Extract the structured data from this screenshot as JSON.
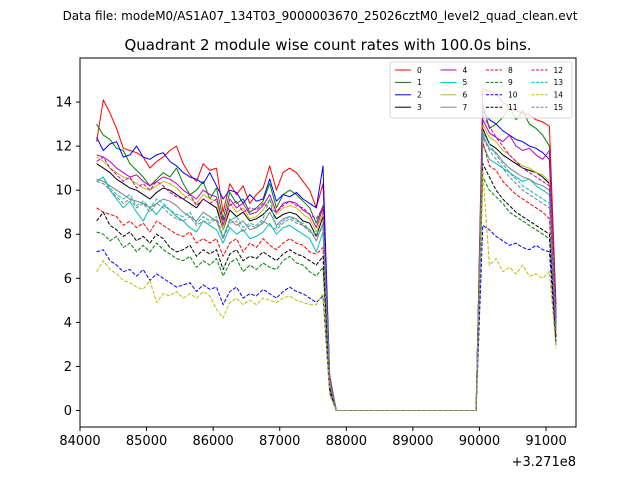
{
  "figure": {
    "suptitle": "Data file: modeM0/AS1A07_134T03_9000003670_25026cztM0_level2_quad_clean.evt"
  },
  "chart_data": {
    "type": "line",
    "title": "Quadrant 2 module wise count rates with 100.0s bins.",
    "xlabel": "",
    "ylabel": "",
    "x_offset_label": "+3.271e8",
    "xlim": [
      84000,
      91450
    ],
    "ylim": [
      -0.75,
      16.0
    ],
    "xticks": [
      84000,
      85000,
      86000,
      87000,
      88000,
      89000,
      90000,
      91000
    ],
    "xtick_labels": [
      "84000",
      "85000",
      "86000",
      "87000",
      "88000",
      "89000",
      "90000",
      "91000"
    ],
    "yticks": [
      0,
      2,
      4,
      6,
      8,
      10,
      12,
      14
    ],
    "ytick_labels": [
      "0",
      "2",
      "4",
      "6",
      "8",
      "10",
      "12",
      "14"
    ],
    "legend": {
      "placement": "upper-right",
      "columns": 4,
      "entries": [
        "0",
        "1",
        "2",
        "3",
        "4",
        "5",
        "6",
        "7",
        "8",
        "9",
        "10",
        "11",
        "12",
        "13",
        "14",
        "15"
      ]
    },
    "segment1_x": [
      84250,
      84350,
      84450,
      84550,
      84650,
      84750,
      84850,
      84950,
      85050,
      85150,
      85250,
      85350,
      85450,
      85550,
      85650,
      85750,
      85850,
      85950,
      86050,
      86150,
      86250,
      86350,
      86450,
      86550,
      86650,
      86750,
      86850,
      86950,
      87050,
      87150,
      87250,
      87350,
      87450,
      87550,
      87650,
      87750
    ],
    "gap_x": [
      87850,
      87950,
      88050,
      88150,
      88250,
      88350,
      88450,
      88550,
      88650,
      88750,
      88850,
      88950,
      89050,
      89150,
      89250,
      89350,
      89450,
      89550,
      89650,
      89750,
      89850,
      89950
    ],
    "segment2_x": [
      90050,
      90150,
      90250,
      90350,
      90450,
      90550,
      90650,
      90750,
      90850,
      90950,
      91050,
      91150
    ],
    "series": [
      {
        "name": "0",
        "color": "#ff0000",
        "dash": "solid",
        "seg1": [
          12.2,
          14.1,
          13.5,
          12.8,
          11.9,
          11.8,
          11.7,
          11.5,
          11.0,
          11.3,
          11.5,
          11.8,
          12.0,
          11.2,
          10.7,
          10.4,
          11.2,
          10.9,
          11.0,
          9.0,
          10.3,
          9.8,
          10.2,
          9.4,
          9.8,
          10.1,
          11.1,
          10.0,
          10.8,
          11.0,
          10.8,
          10.4,
          10.0,
          9.2,
          10.3,
          1.6
        ],
        "seg2": [
          14.6,
          14.5,
          14.4,
          14.0,
          13.8,
          13.6,
          13.5,
          13.4,
          13.2,
          13.1,
          12.9,
          4.8
        ]
      },
      {
        "name": "1",
        "color": "#008000",
        "dash": "solid",
        "seg1": [
          13.0,
          12.5,
          12.3,
          11.9,
          11.8,
          11.2,
          10.9,
          10.6,
          10.2,
          10.5,
          10.8,
          10.6,
          11.0,
          10.3,
          9.8,
          10.0,
          10.4,
          9.6,
          10.1,
          8.7,
          9.9,
          9.4,
          9.6,
          9.0,
          9.2,
          9.5,
          10.3,
          9.2,
          9.8,
          10.0,
          9.8,
          9.5,
          9.2,
          8.5,
          9.3,
          1.4
        ],
        "seg2": [
          13.9,
          12.8,
          13.0,
          13.3,
          13.8,
          13.2,
          13.6,
          13.0,
          12.8,
          12.5,
          12.0,
          4.5
        ]
      },
      {
        "name": "2",
        "color": "#0000ff",
        "dash": "solid",
        "seg1": [
          12.4,
          11.8,
          12.1,
          12.2,
          11.5,
          11.6,
          12.0,
          11.5,
          11.4,
          11.6,
          11.7,
          11.3,
          11.1,
          10.8,
          10.6,
          10.5,
          10.3,
          10.8,
          10.2,
          9.6,
          10.0,
          9.9,
          9.4,
          9.8,
          9.5,
          9.6,
          10.5,
          9.5,
          9.8,
          9.7,
          9.9,
          9.6,
          9.4,
          9.2,
          11.1,
          1.5
        ],
        "seg2": [
          13.6,
          13.2,
          13.0,
          12.7,
          12.5,
          12.3,
          12.2,
          12.0,
          11.9,
          11.7,
          11.4,
          4.2
        ]
      },
      {
        "name": "3",
        "color": "#000000",
        "dash": "solid",
        "seg1": [
          11.2,
          11.0,
          10.8,
          10.5,
          10.3,
          10.1,
          10.0,
          9.8,
          9.6,
          9.9,
          10.1,
          10.0,
          9.8,
          9.6,
          9.4,
          9.2,
          9.6,
          9.4,
          9.2,
          8.2,
          9.1,
          8.8,
          9.0,
          8.6,
          8.7,
          8.9,
          9.2,
          8.7,
          8.9,
          9.0,
          8.9,
          8.6,
          8.5,
          7.9,
          8.8,
          1.3
        ],
        "seg2": [
          12.8,
          12.1,
          11.9,
          11.6,
          11.4,
          11.2,
          11.0,
          10.9,
          10.8,
          10.6,
          10.3,
          3.9
        ]
      },
      {
        "name": "4",
        "color": "#bf00bf",
        "dash": "solid",
        "seg1": [
          11.6,
          11.5,
          11.3,
          11.0,
          10.8,
          10.6,
          10.7,
          10.4,
          10.2,
          10.4,
          10.6,
          10.5,
          10.3,
          10.0,
          9.8,
          9.6,
          10.0,
          9.8,
          9.7,
          8.4,
          9.6,
          9.2,
          9.4,
          8.9,
          9.0,
          9.3,
          9.8,
          9.0,
          9.4,
          9.5,
          9.4,
          9.1,
          8.9,
          8.3,
          9.2,
          1.4
        ],
        "seg2": [
          13.2,
          12.6,
          12.4,
          12.2,
          12.5,
          12.0,
          11.8,
          11.9,
          11.6,
          11.4,
          11.8,
          4.1
        ]
      },
      {
        "name": "5",
        "color": "#00bfbf",
        "dash": "solid",
        "seg1": [
          10.4,
          10.6,
          10.0,
          9.6,
          9.2,
          9.5,
          9.0,
          8.6,
          9.2,
          8.9,
          9.3,
          9.1,
          8.8,
          8.6,
          8.3,
          8.1,
          8.6,
          8.4,
          8.2,
          7.6,
          8.3,
          8.0,
          8.2,
          7.8,
          7.9,
          8.1,
          8.5,
          8.0,
          8.3,
          8.4,
          8.2,
          8.0,
          7.8,
          7.2,
          8.1,
          1.2
        ],
        "seg2": [
          12.1,
          11.4,
          11.2,
          11.0,
          10.8,
          10.6,
          10.4,
          10.5,
          10.2,
          10.0,
          9.8,
          3.6
        ]
      },
      {
        "name": "6",
        "color": "#bfbf00",
        "dash": "solid",
        "seg1": [
          11.5,
          11.3,
          11.0,
          10.8,
          10.6,
          10.5,
          10.3,
          10.1,
          10.0,
          10.2,
          10.4,
          10.3,
          10.1,
          9.8,
          9.6,
          9.4,
          9.8,
          9.6,
          9.5,
          8.2,
          9.4,
          9.0,
          9.2,
          8.7,
          8.8,
          9.1,
          9.6,
          8.9,
          9.2,
          9.3,
          9.2,
          8.9,
          8.7,
          8.1,
          9.0,
          1.4
        ],
        "seg2": [
          13.0,
          12.4,
          12.2,
          11.8,
          11.6,
          11.3,
          11.1,
          11.0,
          10.8,
          10.7,
          10.4,
          3.8
        ]
      },
      {
        "name": "7",
        "color": "#808080",
        "dash": "solid",
        "seg1": [
          10.5,
          10.4,
          10.2,
          10.0,
          9.8,
          9.6,
          9.5,
          9.4,
          9.2,
          9.4,
          9.6,
          9.5,
          9.3,
          9.0,
          8.8,
          8.6,
          9.0,
          8.8,
          8.6,
          7.8,
          8.7,
          8.4,
          8.6,
          8.2,
          8.3,
          8.5,
          9.0,
          8.4,
          8.7,
          8.8,
          8.7,
          8.4,
          8.2,
          7.7,
          8.5,
          1.3
        ],
        "seg2": [
          12.5,
          11.9,
          11.7,
          11.3,
          11.0,
          10.8,
          10.6,
          10.5,
          10.3,
          10.2,
          10.0,
          3.7
        ]
      },
      {
        "name": "8",
        "color": "#ff0000",
        "dash": "dashed",
        "seg1": [
          9.2,
          9.0,
          8.9,
          8.8,
          8.4,
          8.6,
          8.3,
          8.5,
          8.1,
          8.6,
          8.4,
          8.2,
          8.0,
          7.9,
          8.1,
          7.6,
          7.8,
          7.6,
          7.8,
          7.0,
          7.6,
          7.8,
          7.2,
          7.6,
          7.4,
          7.8,
          7.5,
          7.3,
          7.6,
          7.8,
          7.6,
          7.5,
          7.2,
          7.1,
          7.4,
          1.1
        ],
        "seg2": [
          12.2,
          11.1,
          10.9,
          10.4,
          10.1,
          9.8,
          9.6,
          9.4,
          9.2,
          9.0,
          8.7,
          3.4
        ]
      },
      {
        "name": "9",
        "color": "#008000",
        "dash": "dashed",
        "seg1": [
          8.1,
          8.0,
          7.7,
          7.9,
          7.4,
          7.6,
          7.2,
          7.5,
          7.2,
          7.6,
          7.3,
          7.1,
          6.9,
          6.8,
          7.0,
          6.5,
          6.8,
          6.6,
          6.9,
          6.1,
          6.7,
          6.9,
          6.3,
          6.6,
          6.4,
          6.7,
          6.5,
          6.4,
          6.8,
          7.0,
          6.7,
          6.6,
          6.3,
          6.1,
          6.5,
          1.0
        ],
        "seg2": [
          10.6,
          10.0,
          9.7,
          9.4,
          9.0,
          8.8,
          8.6,
          8.4,
          8.2,
          8.0,
          7.8,
          3.1
        ]
      },
      {
        "name": "10",
        "color": "#0000ff",
        "dash": "dashed",
        "seg1": [
          7.2,
          7.3,
          6.8,
          6.6,
          6.3,
          6.4,
          6.1,
          6.4,
          5.9,
          6.2,
          6.0,
          5.8,
          5.6,
          5.7,
          5.8,
          5.4,
          5.7,
          5.5,
          5.6,
          4.8,
          5.4,
          5.6,
          5.1,
          5.3,
          5.2,
          5.5,
          5.3,
          5.1,
          5.4,
          5.6,
          5.4,
          5.3,
          5.1,
          4.9,
          5.2,
          0.8
        ],
        "seg2": [
          8.4,
          8.2,
          7.9,
          7.7,
          7.5,
          7.6,
          7.4,
          7.3,
          7.5,
          7.3,
          7.2,
          3.0
        ]
      },
      {
        "name": "11",
        "color": "#000000",
        "dash": "dashed",
        "seg1": [
          8.6,
          9.0,
          8.4,
          8.2,
          7.9,
          8.1,
          7.7,
          7.9,
          7.6,
          8.0,
          7.8,
          7.4,
          7.2,
          7.3,
          7.5,
          7.0,
          7.3,
          7.1,
          7.3,
          6.4,
          7.1,
          7.3,
          6.8,
          7.0,
          6.9,
          7.2,
          7.0,
          6.8,
          7.1,
          7.3,
          7.1,
          7.0,
          6.8,
          6.6,
          7.0,
          1.0
        ],
        "seg2": [
          11.2,
          10.6,
          10.0,
          9.6,
          9.3,
          9.0,
          8.8,
          8.6,
          8.4,
          8.2,
          8.0,
          3.2
        ]
      },
      {
        "name": "12",
        "color": "#bf00bf",
        "dash": "dashed",
        "seg1": [
          11.3,
          11.5,
          11.0,
          10.7,
          10.4,
          10.6,
          10.1,
          10.3,
          10.0,
          10.4,
          10.2,
          9.9,
          9.7,
          9.6,
          9.8,
          9.3,
          9.6,
          9.4,
          9.6,
          8.6,
          9.3,
          9.5,
          9.0,
          9.2,
          9.1,
          9.4,
          9.2,
          9.0,
          9.3,
          9.5,
          9.3,
          9.2,
          8.9,
          8.7,
          9.2,
          1.3
        ],
        "seg2": [
          13.4,
          12.9,
          12.4,
          12.0,
          11.6,
          11.3,
          11.0,
          10.8,
          10.6,
          10.4,
          10.2,
          3.8
        ]
      },
      {
        "name": "13",
        "color": "#00bfbf",
        "dash": "dashed",
        "seg1": [
          10.4,
          10.6,
          10.1,
          9.8,
          9.6,
          9.8,
          9.3,
          9.5,
          9.2,
          9.6,
          9.4,
          9.1,
          8.9,
          8.8,
          9.0,
          8.5,
          8.8,
          8.6,
          8.8,
          7.9,
          8.6,
          8.8,
          8.3,
          8.5,
          8.4,
          8.7,
          9.6,
          8.3,
          8.6,
          8.8,
          8.6,
          8.5,
          8.2,
          8.0,
          8.4,
          1.2
        ],
        "seg2": [
          12.6,
          12.1,
          11.6,
          11.2,
          10.8,
          10.5,
          10.2,
          10.0,
          9.8,
          9.6,
          9.4,
          3.6
        ]
      },
      {
        "name": "14",
        "color": "#bfbf00",
        "dash": "dashed",
        "seg1": [
          6.3,
          6.8,
          6.4,
          6.2,
          5.9,
          5.8,
          5.6,
          5.5,
          5.9,
          4.9,
          5.3,
          5.2,
          5.4,
          5.1,
          5.3,
          5.1,
          5.4,
          5.2,
          4.6,
          4.2,
          4.9,
          5.1,
          4.8,
          5.0,
          4.8,
          5.1,
          5.0,
          4.9,
          5.1,
          5.2,
          5.0,
          4.9,
          4.8,
          4.8,
          5.3,
          0.7
        ],
        "seg2": [
          10.9,
          6.6,
          6.9,
          6.3,
          6.5,
          6.2,
          6.6,
          6.1,
          6.2,
          6.0,
          6.3,
          2.8
        ]
      },
      {
        "name": "15",
        "color": "#808080",
        "dash": "dashed",
        "seg1": [
          10.4,
          10.3,
          10.0,
          9.7,
          9.4,
          9.6,
          9.2,
          9.4,
          9.0,
          9.4,
          9.2,
          8.9,
          8.7,
          8.6,
          8.8,
          8.4,
          8.6,
          8.5,
          8.7,
          7.8,
          8.5,
          8.6,
          8.1,
          8.4,
          8.3,
          8.6,
          8.4,
          8.2,
          8.5,
          8.7,
          8.5,
          8.4,
          8.1,
          7.9,
          8.3,
          1.2
        ],
        "seg2": [
          12.4,
          11.8,
          11.4,
          11.0,
          10.6,
          10.3,
          10.0,
          9.8,
          9.6,
          9.4,
          9.2,
          3.5
        ]
      }
    ]
  }
}
